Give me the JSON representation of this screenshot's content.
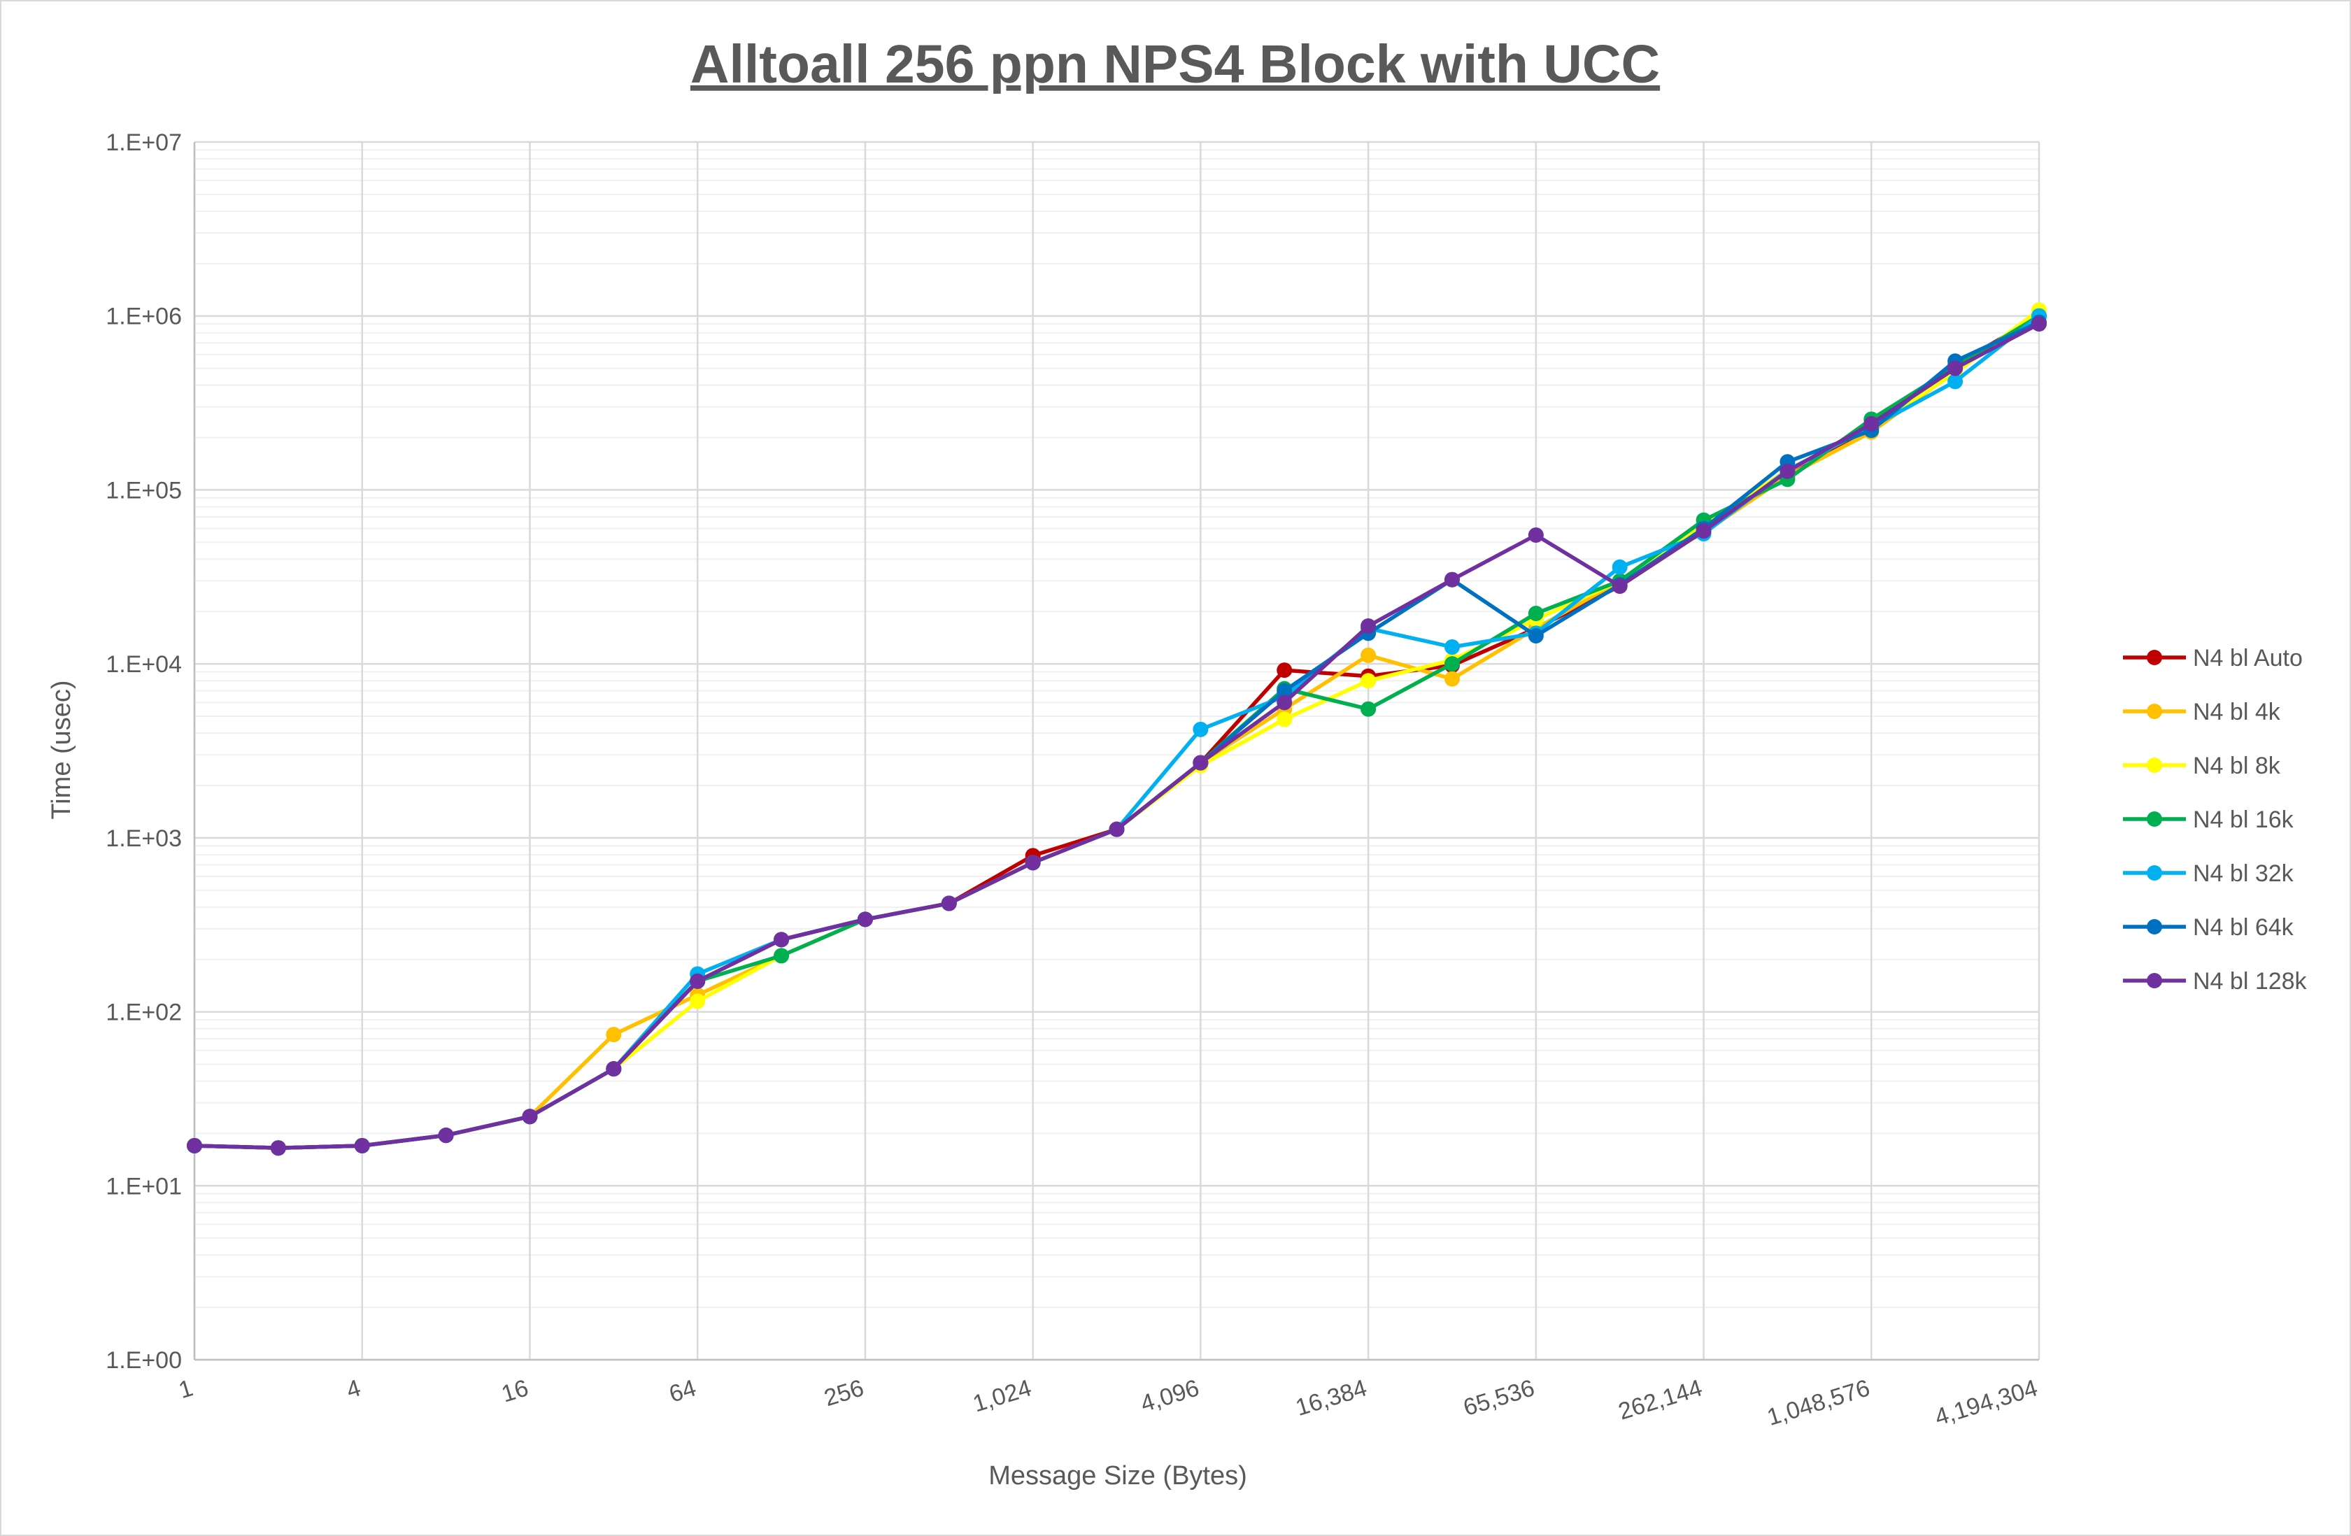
{
  "chart_data": {
    "type": "line",
    "title": "Alltoall 256 ppn NPS4 Block with UCC",
    "xlabel": "Message Size (Bytes)",
    "ylabel": "Time (usec)",
    "x_scale": "log2",
    "y_scale": "log10",
    "xlim": [
      1,
      4194304
    ],
    "ylim": [
      1,
      10000000
    ],
    "x_ticks": [
      1,
      4,
      16,
      64,
      256,
      1024,
      4096,
      16384,
      65536,
      262144,
      1048576,
      4194304
    ],
    "x_tick_labels": [
      "1",
      "4",
      "16",
      "64",
      "256",
      "1,024",
      "4,096",
      "16,384",
      "65,536",
      "262,144",
      "1,048,576",
      "4,194,304"
    ],
    "y_ticks": [
      1,
      10,
      100,
      1000,
      10000,
      100000,
      1000000,
      10000000
    ],
    "y_tick_labels": [
      "1.E+00",
      "1.E+01",
      "1.E+02",
      "1.E+03",
      "1.E+04",
      "1.E+05",
      "1.E+06",
      "1.E+07"
    ],
    "grid": true,
    "legend_position": "right",
    "x": [
      1,
      2,
      4,
      8,
      16,
      32,
      64,
      128,
      256,
      512,
      1024,
      2048,
      4096,
      8192,
      16384,
      32768,
      65536,
      131072,
      262144,
      524288,
      1048576,
      2097152,
      4194304
    ],
    "series": [
      {
        "name": "N4 bl Auto",
        "color": "#c00000",
        "values": [
          17,
          16.5,
          17,
          19.5,
          25,
          47,
          150,
          260,
          340,
          420,
          790,
          1120,
          2700,
          9200,
          8500,
          9800,
          16000,
          28000,
          58000,
          120000,
          225000,
          520000,
          1000000
        ]
      },
      {
        "name": "N4 bl 4k",
        "color": "#ffc000",
        "values": [
          17,
          16.5,
          17,
          19.5,
          25,
          74,
          125,
          210,
          340,
          420,
          720,
          1120,
          2700,
          5500,
          11200,
          8200,
          16000,
          30000,
          57000,
          120000,
          215000,
          480000,
          1000000
        ]
      },
      {
        "name": "N4 bl 8k",
        "color": "#ffff00",
        "values": [
          17,
          16.5,
          17,
          19.5,
          25,
          47,
          115,
          210,
          340,
          420,
          720,
          1120,
          2600,
          4800,
          8000,
          10500,
          18000,
          30000,
          63000,
          130000,
          230000,
          470000,
          1080000
        ]
      },
      {
        "name": "N4 bl 16k",
        "color": "#00b050",
        "values": [
          17,
          16.5,
          17,
          19.5,
          25,
          47,
          150,
          210,
          340,
          420,
          720,
          1120,
          2700,
          7200,
          5500,
          10000,
          19500,
          30000,
          67000,
          115000,
          255000,
          510000,
          1000000
        ]
      },
      {
        "name": "N4 bl 32k",
        "color": "#00b0f0",
        "values": [
          17,
          16.5,
          17,
          19.5,
          25,
          47,
          165,
          260,
          340,
          420,
          720,
          1120,
          4200,
          6500,
          16000,
          12500,
          15000,
          36000,
          56000,
          130000,
          230000,
          420000,
          1000000
        ]
      },
      {
        "name": "N4 bl 64k",
        "color": "#0070c0",
        "values": [
          17,
          16.5,
          17,
          19.5,
          25,
          47,
          150,
          260,
          340,
          420,
          720,
          1120,
          2700,
          7000,
          15000,
          30500,
          14500,
          28500,
          60000,
          145000,
          220000,
          550000,
          920000
        ]
      },
      {
        "name": "N4 bl 128k",
        "color": "#7030a0",
        "values": [
          17,
          16.5,
          17,
          19.5,
          25,
          47,
          150,
          260,
          340,
          420,
          720,
          1120,
          2700,
          6000,
          16500,
          30500,
          55000,
          28000,
          58000,
          128000,
          240000,
          500000,
          900000
        ]
      }
    ]
  }
}
